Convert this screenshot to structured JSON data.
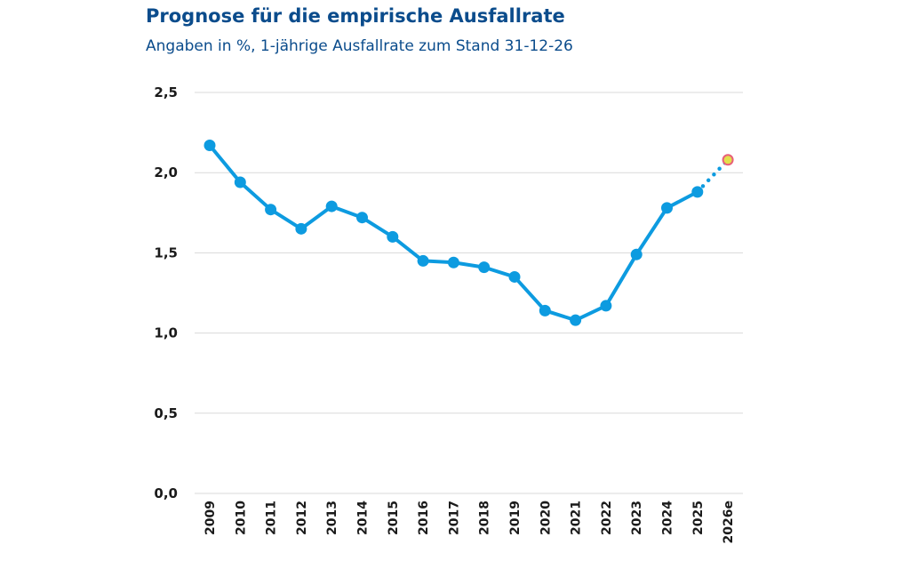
{
  "chart_data": {
    "type": "line",
    "title": "Prognose für die empirische Ausfallrate",
    "subtitle": "Angaben in %, 1-jährige Ausfallrate zum Stand 31-12-26",
    "xlabel": "",
    "ylabel": "",
    "ylim": [
      0,
      2.5
    ],
    "yticks": [
      "0,0",
      "0,5",
      "1,0",
      "1,5",
      "2,0",
      "2,5"
    ],
    "grid": "horizontal",
    "categories": [
      "2009",
      "2010",
      "2011",
      "2012",
      "2013",
      "2014",
      "2015",
      "2016",
      "2017",
      "2018",
      "2019",
      "2020",
      "2021",
      "2022",
      "2023",
      "2024",
      "2025",
      "2026e"
    ],
    "values": [
      2.17,
      1.94,
      1.77,
      1.65,
      1.79,
      1.72,
      1.6,
      1.45,
      1.44,
      1.41,
      1.35,
      1.14,
      1.08,
      1.17,
      1.49,
      1.78,
      1.88,
      2.08
    ],
    "forecast_categories": [
      "2026e"
    ],
    "colors": {
      "line": "#0d9be0",
      "forecast_fill": "#e2e04c",
      "forecast_stroke": "#e8607a",
      "grid": "#d9d9d9",
      "title": "#0b4c8c"
    }
  }
}
